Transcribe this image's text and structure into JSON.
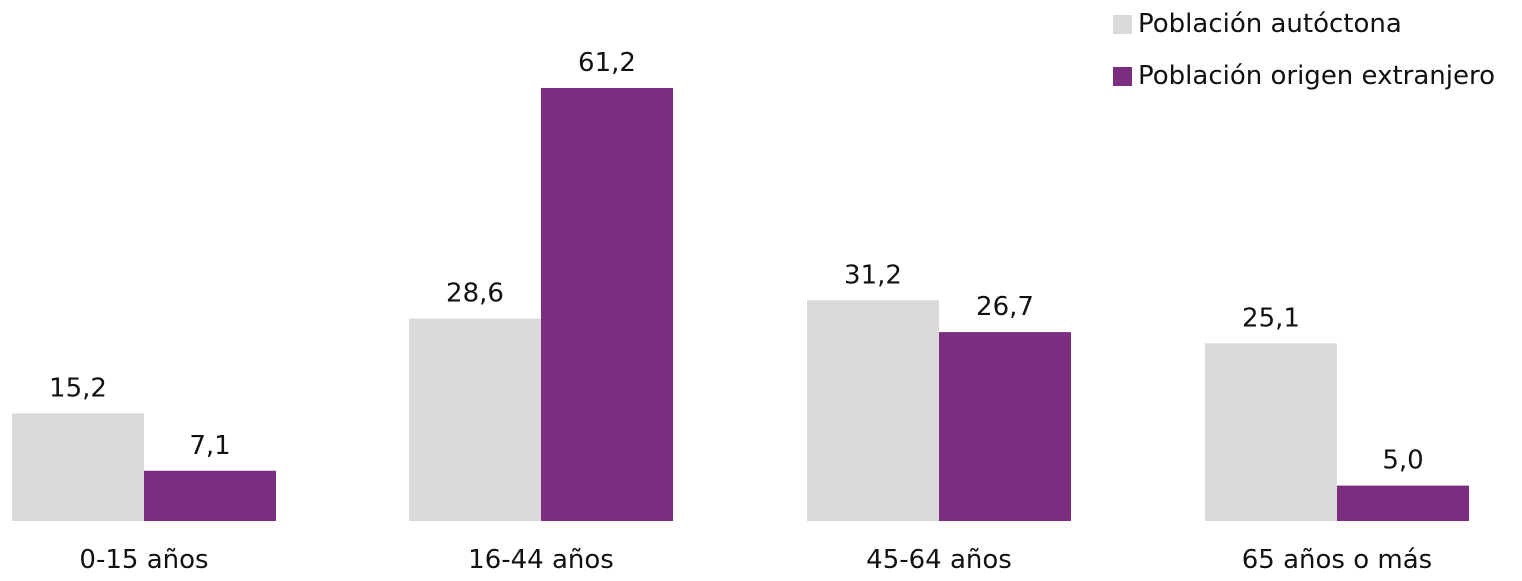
{
  "chart_data": {
    "type": "bar",
    "categories": [
      "0-15 años",
      "16-44 años",
      "45-64 años",
      "65 años  o más"
    ],
    "series": [
      {
        "name": "Población autóctona",
        "values": [
          15.2,
          28.6,
          31.2,
          25.1
        ],
        "labels": [
          "15,2",
          "28,6",
          "31,2",
          "25,1"
        ],
        "color": "#d9d9d9"
      },
      {
        "name": "Población origen extranjero",
        "values": [
          7.1,
          61.2,
          26.7,
          5.0
        ],
        "labels": [
          "7,1",
          "61,2",
          "26,7",
          "5,0"
        ],
        "color": "#7b2d7f"
      }
    ],
    "ylim": [
      0,
      61.2
    ],
    "legend_position": "top-right",
    "grid": false
  }
}
